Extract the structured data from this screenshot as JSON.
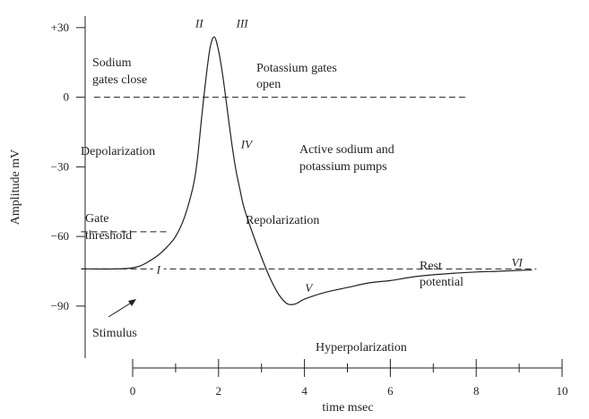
{
  "chart_data": {
    "type": "line",
    "xlabel": "time msec",
    "ylabel": "Amplitude mV",
    "xlim": [
      -1,
      10
    ],
    "ylim": [
      -97,
      36
    ],
    "x_ticks": [
      0,
      2,
      4,
      6,
      8,
      10
    ],
    "x_tick_labels": [
      "0",
      "2",
      "4",
      "6",
      "8",
      "10"
    ],
    "y_ticks": [
      30,
      0,
      -30,
      -60,
      -90
    ],
    "y_tick_labels": [
      "+30",
      "0",
      "−30",
      "−60",
      "−90"
    ],
    "series": [
      {
        "x": [
          -1.2,
          -0.4,
          0.0,
          0.2,
          0.4,
          0.6,
          0.8,
          1.0,
          1.2,
          1.4,
          1.5,
          1.6,
          1.7,
          1.8,
          1.9,
          2.0,
          2.1,
          2.2,
          2.3,
          2.4,
          2.5,
          2.6,
          2.8,
          3.0,
          3.2,
          3.4,
          3.6,
          3.8,
          4.0,
          4.5,
          5.0,
          5.5,
          6.0,
          6.5,
          7.0,
          7.5,
          8.0,
          8.5,
          9.0,
          9.3
        ],
        "y": [
          -74,
          -74,
          -73.5,
          -72.5,
          -70.5,
          -68,
          -64.5,
          -60,
          -52,
          -39,
          -28,
          -10,
          7,
          21,
          26,
          20,
          9,
          -5,
          -19,
          -31,
          -40,
          -48,
          -59,
          -69,
          -78,
          -85,
          -89,
          -89,
          -87,
          -84,
          -82,
          -80,
          -79,
          -77.5,
          -76.5,
          -75.8,
          -75.3,
          -75,
          -74.6,
          -74.5
        ]
      }
    ],
    "reference_lines": [
      {
        "y": 0,
        "x": [
          -0.9,
          7.8
        ]
      },
      {
        "y": -58,
        "x": [
          -1.2,
          0.8
        ]
      },
      {
        "y": -74,
        "x": [
          -1.2,
          9.4
        ]
      }
    ],
    "phase_labels": [
      {
        "text": "I",
        "x": 0.6,
        "y": -74
      },
      {
        "text": "II",
        "x": 1.55,
        "y": 32
      },
      {
        "text": "III",
        "x": 2.55,
        "y": 32
      },
      {
        "text": "IV",
        "x": 2.65,
        "y": -20
      },
      {
        "text": "V",
        "x": 4.1,
        "y": -82
      },
      {
        "text": "VI",
        "x": 8.95,
        "y": -71
      }
    ],
    "annotations": {
      "sodium": [
        "Sodium",
        "gates close"
      ],
      "potassium": [
        "Potassium gates",
        "open"
      ],
      "depolarization": "Depolarization",
      "active": [
        "Active sodium and",
        "potassium pumps"
      ],
      "gate_threshold": [
        "Gate",
        "threshold"
      ],
      "repolarization": "Repolarization",
      "rest": [
        "Rest",
        "potential"
      ],
      "stimulus": "Stimulus",
      "hyperpolarization": "Hyperpolarization"
    }
  }
}
